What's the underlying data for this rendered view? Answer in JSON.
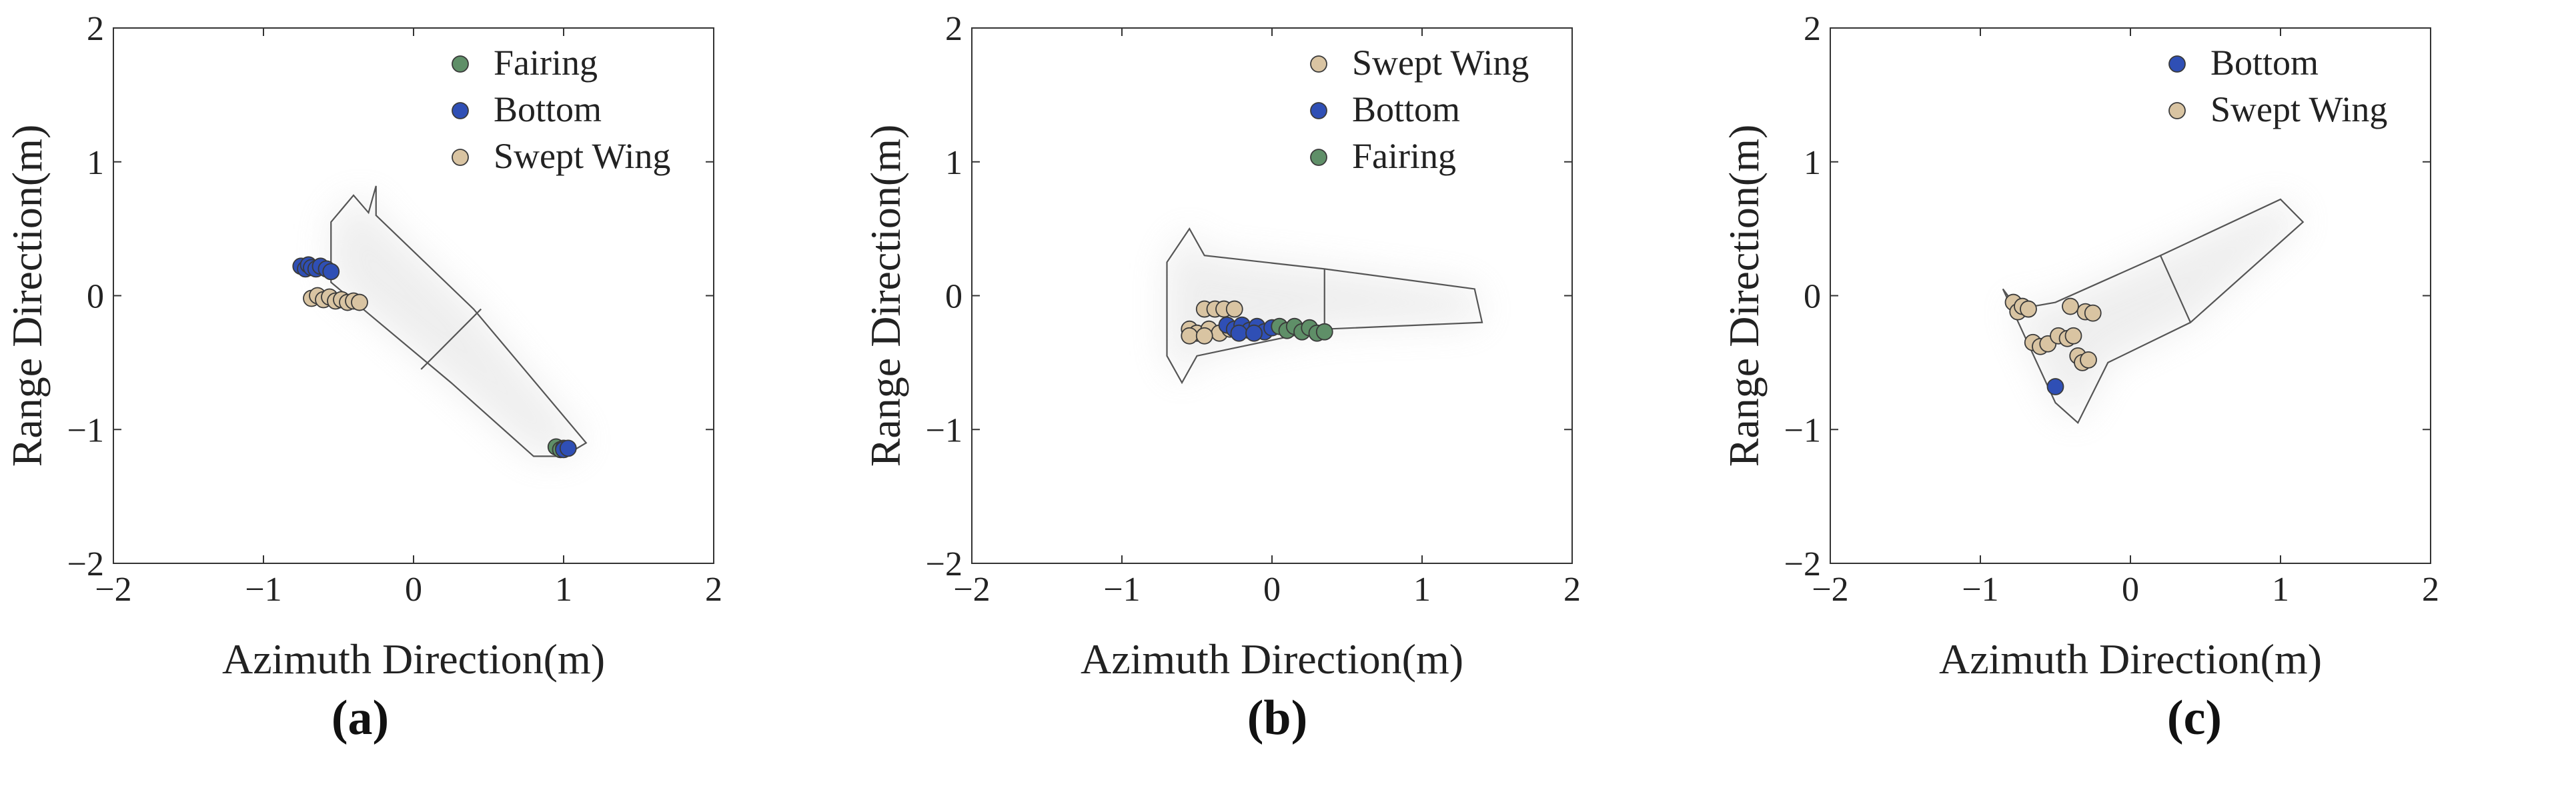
{
  "colors": {
    "Fairing": "#5f8f68",
    "Bottom": "#2f4fb5",
    "Swept Wing": "#d9c4a2",
    "outline": "#555555",
    "marker_edge": "#3a3a3a"
  },
  "chart_data": [
    {
      "type": "scatter",
      "panel_label": "(a)",
      "xlabel": "Azimuth Direction(m)",
      "ylabel": "Range Direction(m)",
      "xlim": [
        -2,
        2
      ],
      "ylim": [
        -2,
        2
      ],
      "xticks": [
        "-2",
        "-1",
        "0",
        "1",
        "2"
      ],
      "yticks": [
        "-2",
        "-1",
        "0",
        "1",
        "2"
      ],
      "grid": false,
      "legend_position": "top-right",
      "legend": [
        "Fairing",
        "Bottom",
        "Swept Wing"
      ],
      "series": [
        {
          "name": "Fairing",
          "points": [
            [
              0.95,
              -1.13
            ],
            [
              0.98,
              -1.15
            ],
            [
              1.0,
              -1.14
            ]
          ]
        },
        {
          "name": "Bottom",
          "points": [
            [
              -0.75,
              0.22
            ],
            [
              -0.72,
              0.2
            ],
            [
              -0.7,
              0.23
            ],
            [
              -0.68,
              0.21
            ],
            [
              -0.65,
              0.2
            ],
            [
              -0.62,
              0.22
            ],
            [
              -0.58,
              0.2
            ],
            [
              -0.55,
              0.18
            ],
            [
              1.0,
              -1.15
            ],
            [
              1.03,
              -1.14
            ]
          ]
        },
        {
          "name": "Swept Wing",
          "points": [
            [
              -0.68,
              -0.02
            ],
            [
              -0.64,
              0.0
            ],
            [
              -0.6,
              -0.03
            ],
            [
              -0.56,
              -0.01
            ],
            [
              -0.52,
              -0.04
            ],
            [
              -0.48,
              -0.03
            ],
            [
              -0.44,
              -0.05
            ],
            [
              -0.4,
              -0.04
            ],
            [
              -0.36,
              -0.05
            ]
          ]
        }
      ],
      "outline": [
        [
          -0.55,
          0.55
        ],
        [
          -0.4,
          0.75
        ],
        [
          -0.3,
          0.62
        ],
        [
          -0.25,
          0.82
        ],
        [
          -0.25,
          0.6
        ],
        [
          0.4,
          -0.1
        ],
        [
          1.15,
          -1.1
        ],
        [
          1.0,
          -1.2
        ],
        [
          0.8,
          -1.2
        ],
        [
          0.25,
          -0.65
        ],
        [
          -0.55,
          0.1
        ],
        [
          -0.55,
          0.55
        ]
      ],
      "outline_inner": [
        [
          0.05,
          -0.55
        ],
        [
          0.45,
          -0.1
        ]
      ]
    },
    {
      "type": "scatter",
      "panel_label": "(b)",
      "xlabel": "Azimuth Direction(m)",
      "ylabel": "Range Direction(m)",
      "xlim": [
        -2,
        2
      ],
      "ylim": [
        -2,
        2
      ],
      "xticks": [
        "-2",
        "-1",
        "0",
        "1",
        "2"
      ],
      "yticks": [
        "-2",
        "-1",
        "0",
        "1",
        "2"
      ],
      "grid": false,
      "legend_position": "top-right",
      "legend": [
        "Swept Wing",
        "Bottom",
        "Fairing"
      ],
      "series": [
        {
          "name": "Swept Wing",
          "points": [
            [
              -0.55,
              -0.25
            ],
            [
              -0.5,
              -0.28
            ],
            [
              -0.45,
              -0.1
            ],
            [
              -0.42,
              -0.25
            ],
            [
              -0.38,
              -0.1
            ],
            [
              -0.35,
              -0.28
            ],
            [
              -0.32,
              -0.1
            ],
            [
              -0.28,
              -0.25
            ],
            [
              -0.25,
              -0.1
            ],
            [
              -0.55,
              -0.3
            ],
            [
              -0.45,
              -0.3
            ]
          ]
        },
        {
          "name": "Bottom",
          "points": [
            [
              -0.3,
              -0.22
            ],
            [
              -0.25,
              -0.25
            ],
            [
              -0.2,
              -0.22
            ],
            [
              -0.15,
              -0.26
            ],
            [
              -0.1,
              -0.23
            ],
            [
              -0.05,
              -0.27
            ],
            [
              0.0,
              -0.24
            ],
            [
              -0.22,
              -0.28
            ],
            [
              -0.12,
              -0.28
            ]
          ]
        },
        {
          "name": "Fairing",
          "points": [
            [
              0.05,
              -0.23
            ],
            [
              0.1,
              -0.26
            ],
            [
              0.15,
              -0.23
            ],
            [
              0.2,
              -0.27
            ],
            [
              0.25,
              -0.24
            ],
            [
              0.3,
              -0.28
            ],
            [
              0.35,
              -0.27
            ]
          ]
        }
      ],
      "outline": [
        [
          -0.7,
          0.25
        ],
        [
          -0.55,
          0.5
        ],
        [
          -0.45,
          0.3
        ],
        [
          0.35,
          0.2
        ],
        [
          1.35,
          0.05
        ],
        [
          1.4,
          -0.2
        ],
        [
          0.35,
          -0.25
        ],
        [
          -0.5,
          -0.45
        ],
        [
          -0.6,
          -0.65
        ],
        [
          -0.7,
          -0.45
        ],
        [
          -0.7,
          0.25
        ]
      ],
      "outline_inner": [
        [
          0.35,
          0.2
        ],
        [
          0.35,
          -0.25
        ]
      ]
    },
    {
      "type": "scatter",
      "panel_label": "(c)",
      "xlabel": "Azimuth Direction(m)",
      "ylabel": "Range Direction(m)",
      "xlim": [
        -2,
        2
      ],
      "ylim": [
        -2,
        2
      ],
      "xticks": [
        "-2",
        "-1",
        "0",
        "1",
        "2"
      ],
      "yticks": [
        "-2",
        "-1",
        "0",
        "1",
        "2"
      ],
      "grid": false,
      "legend_position": "top-right",
      "legend": [
        "Bottom",
        "Swept Wing"
      ],
      "series": [
        {
          "name": "Bottom",
          "points": [
            [
              -0.5,
              -0.68
            ]
          ]
        },
        {
          "name": "Swept Wing",
          "points": [
            [
              -0.78,
              -0.05
            ],
            [
              -0.75,
              -0.12
            ],
            [
              -0.72,
              -0.08
            ],
            [
              -0.68,
              -0.1
            ],
            [
              -0.65,
              -0.35
            ],
            [
              -0.6,
              -0.38
            ],
            [
              -0.55,
              -0.36
            ],
            [
              -0.48,
              -0.3
            ],
            [
              -0.42,
              -0.32
            ],
            [
              -0.38,
              -0.3
            ],
            [
              -0.35,
              -0.45
            ],
            [
              -0.32,
              -0.5
            ],
            [
              -0.3,
              -0.12
            ],
            [
              -0.28,
              -0.48
            ],
            [
              -0.25,
              -0.13
            ],
            [
              -0.4,
              -0.08
            ]
          ]
        }
      ],
      "outline": [
        [
          -0.85,
          0.05
        ],
        [
          -0.75,
          -0.1
        ],
        [
          -0.5,
          -0.05
        ],
        [
          0.2,
          0.3
        ],
        [
          1.0,
          0.72
        ],
        [
          1.15,
          0.55
        ],
        [
          0.4,
          -0.2
        ],
        [
          -0.15,
          -0.5
        ],
        [
          -0.35,
          -0.95
        ],
        [
          -0.5,
          -0.8
        ],
        [
          -0.85,
          0.05
        ]
      ],
      "outline_inner": [
        [
          0.2,
          0.3
        ],
        [
          0.4,
          -0.2
        ]
      ]
    }
  ]
}
